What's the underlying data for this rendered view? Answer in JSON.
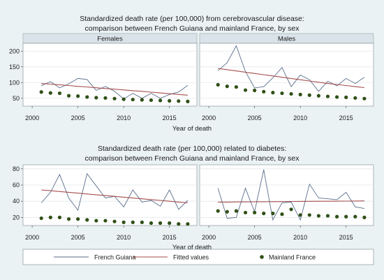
{
  "chart_data": [
    {
      "type": "line",
      "title": "Standardized death rate (per 100,000) from cerebrovascular disease:",
      "subtitle": "comparison between French Guiana and mainland France, by sex",
      "xlabel": "Year of death",
      "ylabel": "",
      "xlim": [
        1999,
        2018
      ],
      "ylim": [
        25,
        225
      ],
      "xticks": [
        2000,
        2005,
        2010,
        2015
      ],
      "yticks": [
        50,
        100,
        150,
        200
      ],
      "grid": true,
      "panels": [
        {
          "name": "Females",
          "x": [
            2001,
            2002,
            2003,
            2004,
            2005,
            2006,
            2007,
            2008,
            2009,
            2010,
            2011,
            2012,
            2013,
            2014,
            2015,
            2016,
            2017
          ],
          "series": [
            {
              "name": "French Guiana",
              "values": [
                90,
                103,
                83,
                96,
                113,
                110,
                75,
                88,
                72,
                48,
                66,
                50,
                66,
                50,
                62,
                70,
                91
              ]
            },
            {
              "name": "Fitted values",
              "values": [
                97,
                95,
                93,
                90.5,
                88,
                86,
                83.5,
                81,
                79,
                76.5,
                74,
                72,
                69.5,
                67,
                64.5,
                62,
                60
              ]
            },
            {
              "name": "Mainland France",
              "values": [
                70,
                67,
                66,
                58,
                57,
                54,
                52,
                51,
                49,
                47,
                46,
                45,
                44,
                43,
                42,
                41,
                40
              ]
            }
          ]
        },
        {
          "name": "Males",
          "x": [
            2001,
            2002,
            2003,
            2004,
            2005,
            2006,
            2007,
            2008,
            2009,
            2010,
            2011,
            2012,
            2013,
            2014,
            2015,
            2016,
            2017
          ],
          "series": [
            {
              "name": "French Guiana",
              "values": [
                138,
                163,
                217,
                135,
                83,
                87,
                115,
                148,
                87,
                124,
                109,
                72,
                104,
                90,
                113,
                97,
                117
              ]
            },
            {
              "name": "Fitted values",
              "values": [
                145,
                141,
                137,
                133,
                129,
                125,
                121,
                117,
                113,
                109,
                105,
                101,
                97,
                94,
                90.5,
                87,
                84
              ]
            },
            {
              "name": "Mainland France",
              "values": [
                93,
                88,
                86,
                76,
                75,
                71,
                68,
                66,
                64,
                62,
                60,
                58,
                56,
                54,
                53,
                51,
                49
              ]
            }
          ]
        }
      ]
    },
    {
      "type": "line",
      "title": "Standardized death rate (per 100,000) related to diabetes:",
      "subtitle": "comparison between French Guiana and mainland France, by sex",
      "xlabel": "Year of death",
      "ylabel": "",
      "xlim": [
        1999,
        2018
      ],
      "ylim": [
        10,
        85
      ],
      "xticks": [
        2000,
        2005,
        2010,
        2015
      ],
      "yticks": [
        20,
        40,
        60,
        80
      ],
      "grid": true,
      "panels": [
        {
          "name": "",
          "x": [
            2001,
            2002,
            2003,
            2004,
            2005,
            2006,
            2007,
            2008,
            2009,
            2010,
            2011,
            2012,
            2013,
            2014,
            2015,
            2016,
            2017
          ],
          "series": [
            {
              "name": "French Guiana",
              "values": [
                38,
                51,
                73,
                44,
                29,
                74,
                59,
                44,
                46,
                33,
                54,
                39,
                41,
                34,
                54,
                30,
                41
              ]
            },
            {
              "name": "Fitted values",
              "values": [
                54,
                53,
                52,
                51,
                50,
                49,
                48,
                47,
                46,
                45,
                44,
                43,
                42,
                41,
                40,
                39,
                38
              ]
            },
            {
              "name": "Mainland France",
              "values": [
                19,
                20,
                20,
                18,
                18,
                17,
                16,
                16,
                15,
                14,
                14,
                14,
                13,
                13,
                13,
                12,
                12
              ]
            }
          ]
        },
        {
          "name": "",
          "x": [
            2001,
            2002,
            2003,
            2004,
            2005,
            2006,
            2007,
            2008,
            2009,
            2010,
            2011,
            2012,
            2013,
            2014,
            2015,
            2016,
            2017
          ],
          "series": [
            {
              "name": "French Guiana",
              "values": [
                56,
                19,
                20,
                56,
                27,
                79,
                17,
                38,
                39,
                17,
                61,
                44,
                43,
                42,
                51,
                33,
                31
              ]
            },
            {
              "name": "Fitted values",
              "values": [
                39,
                39,
                39.1,
                39.2,
                39.3,
                39.4,
                39.5,
                39.6,
                39.7,
                39.8,
                39.9,
                40,
                40,
                40.1,
                40.2,
                40.3,
                40.4
              ]
            },
            {
              "name": "Mainland France",
              "values": [
                28,
                27,
                28,
                26,
                26,
                25,
                25,
                24,
                30,
                23,
                23,
                22,
                22,
                21,
                21,
                21,
                20
              ]
            }
          ]
        }
      ]
    }
  ],
  "legend": {
    "placement": "bottom",
    "items": [
      {
        "label": "French Guiana",
        "kind": "line",
        "color": "#5a6e8c"
      },
      {
        "label": "Fitted values",
        "kind": "line",
        "color": "#a44e4e"
      },
      {
        "label": "Mainland France",
        "kind": "dot",
        "color": "#2f5017"
      }
    ]
  },
  "colors": {
    "outer_bg": "#eaf2f3",
    "plot_bg": "#ffffff",
    "strip_bg": "#d9e3e9",
    "grid": "#e3e8ea",
    "guiana": "#5a6e8c",
    "fitted": "#a44e4e",
    "france": "#2f5017"
  }
}
